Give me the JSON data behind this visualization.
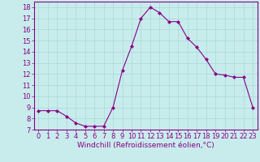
{
  "x": [
    0,
    1,
    2,
    3,
    4,
    5,
    6,
    7,
    8,
    9,
    10,
    11,
    12,
    13,
    14,
    15,
    16,
    17,
    18,
    19,
    20,
    21,
    22,
    23
  ],
  "y": [
    8.7,
    8.7,
    8.7,
    8.2,
    7.6,
    7.3,
    7.3,
    7.3,
    9.0,
    12.3,
    14.5,
    17.0,
    18.0,
    17.5,
    16.7,
    16.7,
    15.2,
    14.4,
    13.3,
    12.0,
    11.9,
    11.7,
    11.7,
    9.0
  ],
  "line_color": "#880088",
  "marker": "D",
  "marker_size": 2.0,
  "bg_color": "#c8ecec",
  "grid_color": "#a8d8d8",
  "xlabel": "Windchill (Refroidissement éolien,°C)",
  "ylim": [
    7,
    18.5
  ],
  "xlim": [
    -0.5,
    23.5
  ],
  "yticks": [
    7,
    8,
    9,
    10,
    11,
    12,
    13,
    14,
    15,
    16,
    17,
    18
  ],
  "xticks": [
    0,
    1,
    2,
    3,
    4,
    5,
    6,
    7,
    8,
    9,
    10,
    11,
    12,
    13,
    14,
    15,
    16,
    17,
    18,
    19,
    20,
    21,
    22,
    23
  ],
  "tick_color": "#880088",
  "label_fontsize": 6.5,
  "tick_fontsize": 6.0,
  "spine_color": "#880088",
  "line_width": 0.8
}
